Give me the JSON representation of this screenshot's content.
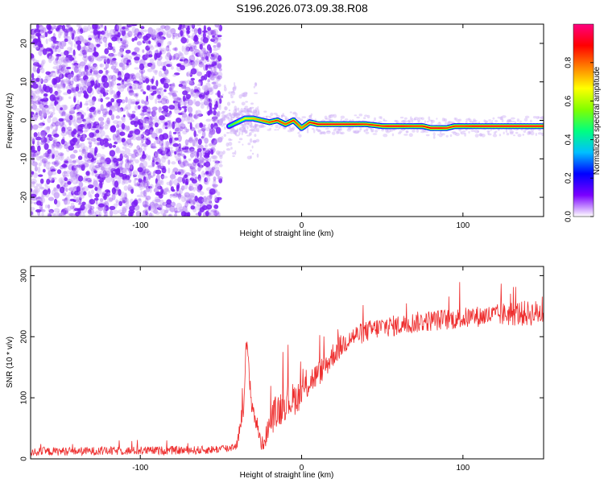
{
  "title": "S196.2026.073.09.38.R08",
  "colors": {
    "scatter_purple": "#7a1cf2",
    "scatter_light": "#c9a8f6",
    "snr_line": "#ee2e2e",
    "frame": "#000000"
  },
  "chart_data": [
    {
      "type": "heatmap",
      "title": "",
      "xlabel": "Height of straight line (km)",
      "ylabel": "Frequency (Hz)",
      "xlim": [
        -168,
        150
      ],
      "ylim": [
        -25,
        25
      ],
      "xticks": [
        -100,
        0,
        100
      ],
      "xtick_labels": [
        "-100",
        "0",
        "100"
      ],
      "yticks": [
        -20,
        -10,
        0,
        10,
        20
      ],
      "ytick_labels": [
        "-20",
        "-10",
        "0",
        "10",
        "20"
      ],
      "noise_region_x": [
        -168,
        -50
      ],
      "transition_region_x": [
        -50,
        -35
      ],
      "ridge": {
        "x": [
          -45,
          -40,
          -35,
          -30,
          -25,
          -20,
          -15,
          -10,
          -5,
          0,
          5,
          10,
          20,
          30,
          40,
          50,
          55,
          60,
          70,
          75,
          80,
          85,
          90,
          95,
          100,
          110,
          120,
          130,
          140,
          150
        ],
        "y": [
          -1.5,
          -0.5,
          0.5,
          0.5,
          0,
          -0.5,
          0,
          -1,
          0,
          -2,
          -0.5,
          -1,
          -1,
          -1,
          -1,
          -1.5,
          -1.5,
          -1.5,
          -1.5,
          -1.5,
          -2,
          -2,
          -2,
          -1.5,
          -1.5,
          -1.5,
          -1.5,
          -1.5,
          -1.5,
          -1.5
        ],
        "amplitude": [
          0.5,
          0.6,
          0.7,
          0.75,
          0.8,
          0.85,
          0.9,
          0.85,
          0.9,
          0.8,
          0.9,
          0.95,
          0.95,
          0.95,
          0.9,
          0.9,
          0.95,
          0.95,
          0.9,
          0.9,
          0.95,
          0.95,
          0.9,
          0.9,
          0.9,
          0.95,
          0.95,
          0.95,
          0.95,
          0.95
        ]
      },
      "colorbar": {
        "label": "Normalized spectral amplitude",
        "range": [
          0.0,
          1.0
        ],
        "ticks": [
          0.0,
          0.2,
          0.4,
          0.6,
          0.8
        ],
        "tick_labels": [
          "0.0",
          "0.2",
          "0.4",
          "0.6",
          "0.8"
        ],
        "colormap": [
          "#ffffff",
          "#7b00ff",
          "#0000ff",
          "#00bfff",
          "#00ff80",
          "#80ff00",
          "#ffff00",
          "#ff8000",
          "#ff0000",
          "#ff0080"
        ]
      }
    },
    {
      "type": "line",
      "title": "",
      "xlabel": "Height of straight line (km)",
      "ylabel": "SNR (10 * v/v)",
      "xlim": [
        -168,
        150
      ],
      "ylim": [
        0,
        315
      ],
      "xticks": [
        -100,
        0,
        100
      ],
      "xtick_labels": [
        "-100",
        "0",
        "100"
      ],
      "yticks": [
        0,
        100,
        200,
        300
      ],
      "ytick_labels": [
        "0",
        "100",
        "200",
        "300"
      ],
      "series": [
        {
          "name": "SNR",
          "x": [
            -168,
            -150,
            -100,
            -60,
            -45,
            -40,
            -36,
            -34,
            -33,
            -31,
            -29,
            -27,
            -25,
            -23,
            -20,
            -17,
            -14,
            -10,
            -5,
            0,
            5,
            10,
            15,
            20,
            30,
            40,
            50,
            60,
            70,
            80,
            90,
            100,
            110,
            120,
            130,
            140,
            150
          ],
          "values": [
            12,
            13,
            14,
            15,
            18,
            25,
            90,
            200,
            150,
            95,
            70,
            50,
            25,
            30,
            60,
            75,
            85,
            95,
            100,
            110,
            130,
            140,
            155,
            175,
            200,
            210,
            218,
            220,
            225,
            228,
            230,
            232,
            235,
            237,
            240,
            240,
            242
          ],
          "jitter": [
            10,
            10,
            10,
            10,
            10,
            12,
            25,
            30,
            30,
            25,
            25,
            20,
            15,
            20,
            30,
            40,
            45,
            40,
            40,
            35,
            35,
            30,
            30,
            30,
            25,
            25,
            25,
            25,
            25,
            25,
            25,
            25,
            25,
            25,
            30,
            30,
            30
          ]
        }
      ]
    }
  ]
}
